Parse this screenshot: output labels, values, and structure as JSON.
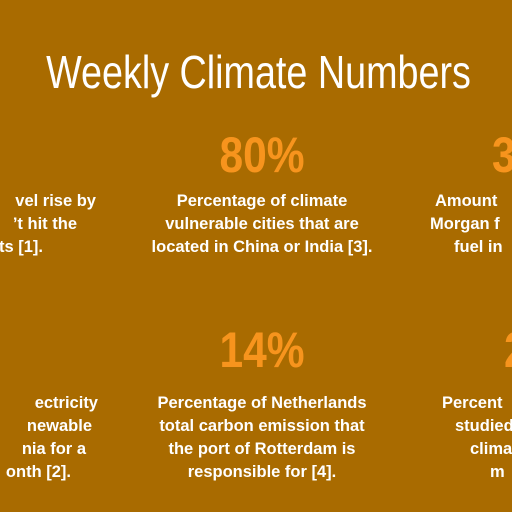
{
  "title": "Weekly Climate Numbers",
  "stats": [
    {
      "number": "80%",
      "lines": [
        "Percentage of climate",
        "vulnerable cities that are",
        "located in China or India [3]."
      ]
    },
    {
      "number": "14%",
      "lines": [
        "Percentage of Netherlands",
        "total carbon emission that",
        "the port of Rotterdam is",
        "responsible for [4]."
      ]
    }
  ],
  "left_fragments": [
    {
      "lines": [
        "vel rise by",
        "’t hit the",
        "ts [1]."
      ]
    },
    {
      "lines": [
        "ectricity",
        "newable",
        "nia for a",
        "onth [2]."
      ]
    }
  ],
  "right_fragments": [
    {
      "number": "3",
      "lines": [
        "Amount",
        "Morgan f",
        "fuel in"
      ]
    },
    {
      "number": "2",
      "lines": [
        "Percent",
        "studied",
        "clima",
        "m"
      ]
    }
  ]
}
